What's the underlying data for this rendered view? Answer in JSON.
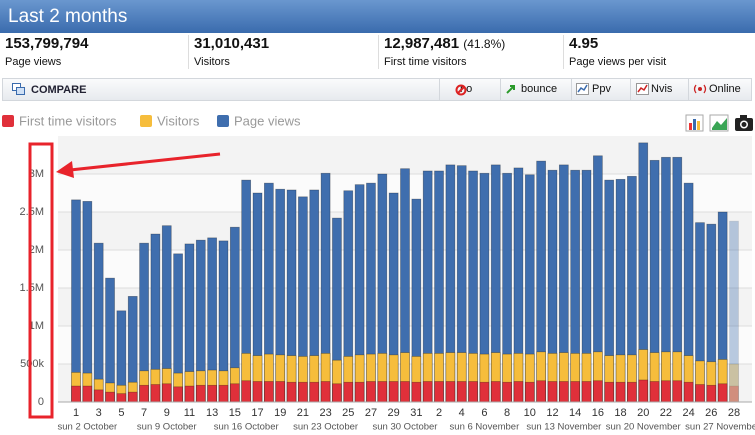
{
  "header": {
    "title": "Last 2 months"
  },
  "stats": [
    {
      "value": "153,799,794",
      "label": "Page views"
    },
    {
      "value": "31,010,431",
      "label": "Visitors"
    },
    {
      "value": "12,987,481",
      "extra": "(41.8%)",
      "label": "First time visitors"
    },
    {
      "value": "4.95",
      "label": "Page views per visit"
    }
  ],
  "toolbar": {
    "compare": "COMPARE",
    "buttons": [
      "no",
      "bounce",
      "Ppv",
      "Nvis",
      "Online"
    ]
  },
  "chart_data": {
    "type": "bar",
    "overlap": true,
    "last_value_projected": true,
    "grid": true,
    "categories": [
      "1",
      null,
      "3",
      null,
      "5",
      null,
      "7",
      null,
      "9",
      null,
      "11",
      null,
      "13",
      null,
      "15",
      null,
      "17",
      null,
      "19",
      null,
      "21",
      null,
      "23",
      null,
      "25",
      null,
      "27",
      null,
      "29",
      null,
      "31",
      null,
      "2",
      null,
      "4",
      null,
      "6",
      null,
      "8",
      null,
      "10",
      null,
      "12",
      null,
      "14",
      null,
      "16",
      null,
      "18",
      null,
      "20",
      null,
      "22",
      null,
      "24",
      null,
      "26",
      null,
      "28"
    ],
    "week_labels": [
      null,
      "sun 2 October",
      null,
      null,
      null,
      null,
      null,
      null,
      "sun 9 October",
      null,
      null,
      null,
      null,
      null,
      null,
      "sun 16 October",
      null,
      null,
      null,
      null,
      null,
      null,
      "sun 23 October",
      null,
      null,
      null,
      null,
      null,
      null,
      "sun 30 October",
      null,
      null,
      null,
      null,
      null,
      null,
      "sun 6 November",
      null,
      null,
      null,
      null,
      null,
      null,
      "sun 13 November",
      null,
      null,
      null,
      null,
      null,
      null,
      "sun 20 November",
      null,
      null,
      null,
      null,
      null,
      null,
      "sun 27 November",
      null
    ],
    "ylim": [
      0,
      3500000
    ],
    "yticks": [
      0,
      {
        "value": 500000,
        "label": "500k"
      },
      {
        "value": 1000000,
        "label": "1M"
      },
      {
        "value": 1500000,
        "label": "1.5M"
      },
      {
        "value": 2000000,
        "label": "2M"
      },
      {
        "value": 2500000,
        "label": "2.5M"
      },
      {
        "value": 3000000,
        "label": "3M"
      }
    ],
    "series": [
      {
        "name": "Page views",
        "color": "#3f6eae",
        "values": [
          2660000,
          2640000,
          2090000,
          1630000,
          1200000,
          1390000,
          2090000,
          2210000,
          2320000,
          1950000,
          2080000,
          2130000,
          2160000,
          2120000,
          2300000,
          2920000,
          2750000,
          2880000,
          2800000,
          2790000,
          2700000,
          2790000,
          3010000,
          2420000,
          2780000,
          2860000,
          2880000,
          3000000,
          2750000,
          3070000,
          2670000,
          3040000,
          3040000,
          3120000,
          3110000,
          3040000,
          3010000,
          3120000,
          3010000,
          3080000,
          2990000,
          3170000,
          3050000,
          3120000,
          3050000,
          3050000,
          3240000,
          2920000,
          2930000,
          2970000,
          3410000,
          3180000,
          3220000,
          3220000,
          2880000,
          2360000,
          2340000,
          2500000,
          2380000
        ]
      },
      {
        "name": "Visitors",
        "color": "#f6bd3c",
        "values": [
          390000,
          380000,
          300000,
          250000,
          220000,
          260000,
          410000,
          430000,
          440000,
          380000,
          400000,
          410000,
          420000,
          410000,
          450000,
          640000,
          610000,
          630000,
          620000,
          610000,
          600000,
          610000,
          640000,
          550000,
          600000,
          620000,
          630000,
          640000,
          620000,
          650000,
          600000,
          640000,
          640000,
          650000,
          650000,
          640000,
          630000,
          650000,
          630000,
          640000,
          630000,
          660000,
          640000,
          650000,
          640000,
          640000,
          660000,
          610000,
          620000,
          620000,
          690000,
          650000,
          660000,
          660000,
          610000,
          540000,
          530000,
          560000,
          500000
        ]
      },
      {
        "name": "First time visitors",
        "color": "#e0303a",
        "values": [
          210000,
          210000,
          160000,
          130000,
          110000,
          130000,
          220000,
          230000,
          240000,
          200000,
          210000,
          220000,
          220000,
          220000,
          240000,
          280000,
          270000,
          270000,
          270000,
          260000,
          260000,
          260000,
          270000,
          240000,
          260000,
          260000,
          270000,
          270000,
          270000,
          270000,
          260000,
          270000,
          270000,
          270000,
          270000,
          270000,
          260000,
          270000,
          260000,
          270000,
          260000,
          280000,
          270000,
          270000,
          270000,
          270000,
          280000,
          260000,
          260000,
          260000,
          290000,
          270000,
          280000,
          280000,
          260000,
          230000,
          220000,
          240000,
          210000
        ]
      }
    ]
  }
}
